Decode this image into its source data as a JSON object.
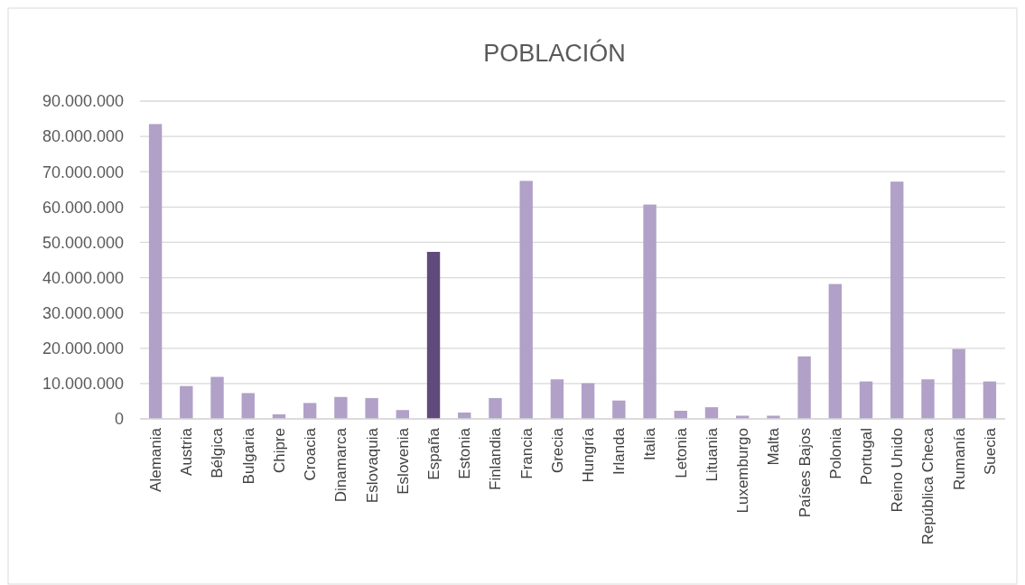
{
  "chart_data": {
    "type": "bar",
    "title": "POBLACIÓN",
    "categories": [
      "Alemania",
      "Austria",
      "Bélgica",
      "Bulgaria",
      "Chipre",
      "Croacia",
      "Dinamarca",
      "Eslovaquia",
      "Eslovenia",
      "España",
      "Estonia",
      "Finlandia",
      "Francia",
      "Grecia",
      "Hungría",
      "Irlanda",
      "Italia",
      "Letonia",
      "Lituania",
      "Luxemburgo",
      "Malta",
      "Países Bajos",
      "Polonia",
      "Portugal",
      "Reino Unido",
      "República Checa",
      "Rumanía",
      "Suecia"
    ],
    "values": [
      83500000,
      9300000,
      11900000,
      7300000,
      1300000,
      4500000,
      6200000,
      5900000,
      2500000,
      47300000,
      1800000,
      5900000,
      67400000,
      11200000,
      10100000,
      5200000,
      60700000,
      2300000,
      3300000,
      900000,
      900000,
      17700000,
      38200000,
      10600000,
      67200000,
      11200000,
      19800000,
      10600000
    ],
    "colors": [
      "#b1a0c7",
      "#b1a0c7",
      "#b1a0c7",
      "#b1a0c7",
      "#b1a0c7",
      "#b1a0c7",
      "#b1a0c7",
      "#b1a0c7",
      "#b1a0c7",
      "#604a7b",
      "#b1a0c7",
      "#b1a0c7",
      "#b1a0c7",
      "#b1a0c7",
      "#b1a0c7",
      "#b1a0c7",
      "#b1a0c7",
      "#b1a0c7",
      "#b1a0c7",
      "#b1a0c7",
      "#b1a0c7",
      "#b1a0c7",
      "#b1a0c7",
      "#b1a0c7",
      "#b1a0c7",
      "#b1a0c7",
      "#b1a0c7",
      "#b1a0c7"
    ],
    "ylim": [
      0,
      90000000
    ],
    "yticks": [
      0,
      {
        "value": 10000000,
        "label": "10.000.000"
      },
      {
        "value": 20000000,
        "label": "20.000.000"
      },
      {
        "value": 30000000,
        "label": "30.000.000"
      },
      {
        "value": 40000000,
        "label": "40.000.000"
      },
      {
        "value": 50000000,
        "label": "50.000.000"
      },
      {
        "value": 60000000,
        "label": "60.000.000"
      },
      {
        "value": 70000000,
        "label": "70.000.000"
      },
      {
        "value": 80000000,
        "label": "80.000.000"
      },
      {
        "value": 90000000,
        "label": "90.000.000"
      }
    ],
    "grid": true
  }
}
